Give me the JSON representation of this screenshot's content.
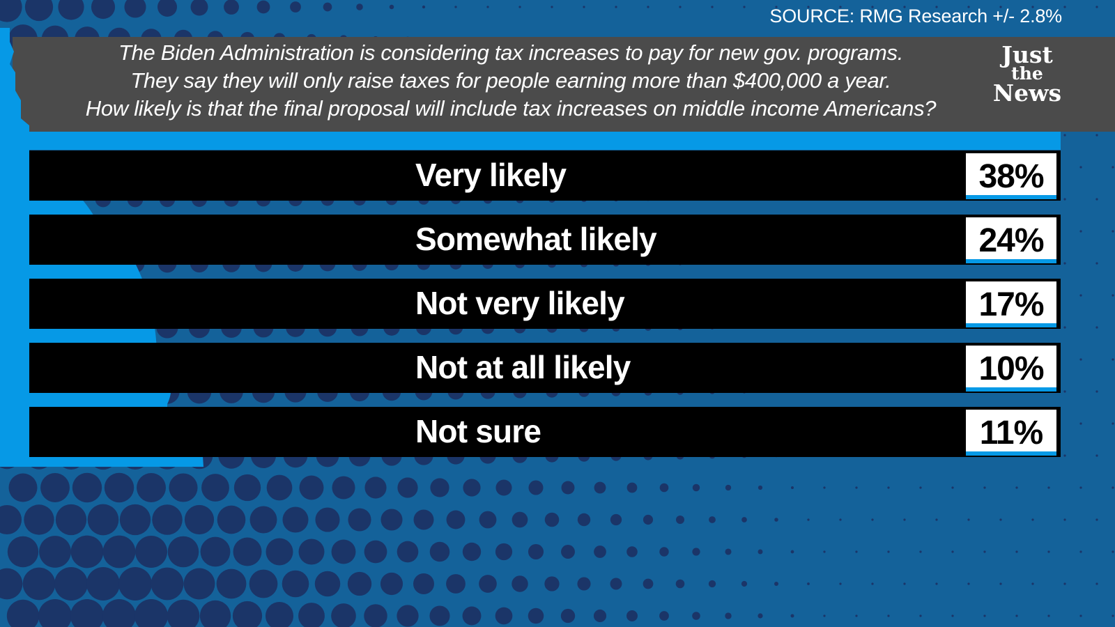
{
  "source": "SOURCE: RMG Research +/- 2.8%",
  "question": {
    "line1": "The Biden Administration is considering tax increases to pay for new gov. programs.",
    "line2": "They say they will only raise taxes for people earning more than $400,000 a year.",
    "line3": "How likely is that the final proposal will include tax increases on middle income Americans?"
  },
  "logo": {
    "line1": "Just",
    "line2": "the",
    "line3": "News"
  },
  "colors": {
    "background": "#14629a",
    "dots": "#1b3568",
    "accent_blue": "#0699e6",
    "header_gray": "#4b4b4b",
    "bar": "#000000"
  },
  "chart_data": {
    "type": "bar",
    "categories": [
      "Very likely",
      "Somewhat likely",
      "Not very likely",
      "Not at all likely",
      "Not sure"
    ],
    "values": [
      38,
      24,
      17,
      10,
      11
    ],
    "value_labels": [
      "38%",
      "24%",
      "17%",
      "10%",
      "11%"
    ]
  }
}
